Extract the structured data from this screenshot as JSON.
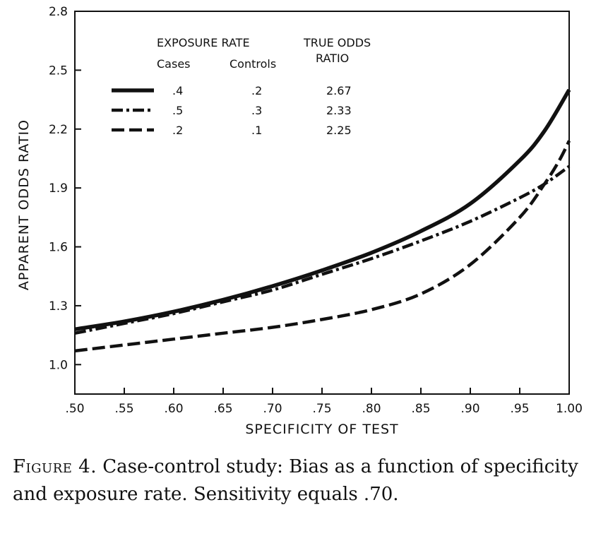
{
  "chart_data": {
    "type": "line",
    "xlabel": "SPECIFICITY OF TEST",
    "ylabel": "APPARENT ODDS RATIO",
    "xlim": [
      0.5,
      1.0
    ],
    "ylim": [
      0.85,
      2.8
    ],
    "x_ticks": [
      0.5,
      0.55,
      0.6,
      0.65,
      0.7,
      0.75,
      0.8,
      0.85,
      0.9,
      0.95,
      1.0
    ],
    "x_tick_labels": [
      ".50",
      ".55",
      ".60",
      ".65",
      ".70",
      ".75",
      ".80",
      ".85",
      ".90",
      ".95",
      "1.00"
    ],
    "y_ticks": [
      1.0,
      1.3,
      1.6,
      1.9,
      2.2,
      2.5,
      2.8
    ],
    "y_tick_labels": [
      "1.0",
      "1.3",
      "1.6",
      "1.9",
      "2.2",
      "2.5",
      "2.8"
    ],
    "grid": false,
    "legend": {
      "placement": "top-left",
      "header_exposure": "EXPOSURE RATE",
      "header_cases": "Cases",
      "header_controls": "Controls",
      "header_true_odds_line1": "TRUE ODDS",
      "header_true_odds_line2": "RATIO",
      "rows": [
        {
          "style": "solid",
          "cases": ".4",
          "controls": ".2",
          "true_or": "2.67"
        },
        {
          "style": "dashdot",
          "cases": ".5",
          "controls": ".3",
          "true_or": "2.33"
        },
        {
          "style": "dashed",
          "cases": ".2",
          "controls": ".1",
          "true_or": "2.25"
        }
      ]
    },
    "series": [
      {
        "style": "solid",
        "x": [
          0.5,
          0.55,
          0.6,
          0.65,
          0.7,
          0.75,
          0.8,
          0.85,
          0.9,
          0.95,
          0.975,
          1.0
        ],
        "y": [
          1.18,
          1.22,
          1.27,
          1.33,
          1.4,
          1.48,
          1.57,
          1.68,
          1.82,
          2.04,
          2.19,
          2.4
        ]
      },
      {
        "style": "dashdot",
        "x": [
          0.5,
          0.55,
          0.6,
          0.65,
          0.7,
          0.75,
          0.8,
          0.85,
          0.9,
          0.95,
          0.975,
          1.0
        ],
        "y": [
          1.16,
          1.21,
          1.26,
          1.32,
          1.38,
          1.46,
          1.54,
          1.63,
          1.73,
          1.85,
          1.92,
          2.01
        ]
      },
      {
        "style": "dashed",
        "x": [
          0.5,
          0.55,
          0.6,
          0.65,
          0.7,
          0.75,
          0.8,
          0.85,
          0.9,
          0.95,
          0.975,
          0.99,
          1.0
        ],
        "y": [
          1.07,
          1.1,
          1.13,
          1.16,
          1.19,
          1.23,
          1.28,
          1.36,
          1.51,
          1.75,
          1.92,
          2.04,
          2.14
        ]
      }
    ]
  },
  "caption": {
    "label": "Figure 4.",
    "text": "Case-control study: Bias as a function of specificity and exposure rate. Sensitivity equals .70."
  }
}
